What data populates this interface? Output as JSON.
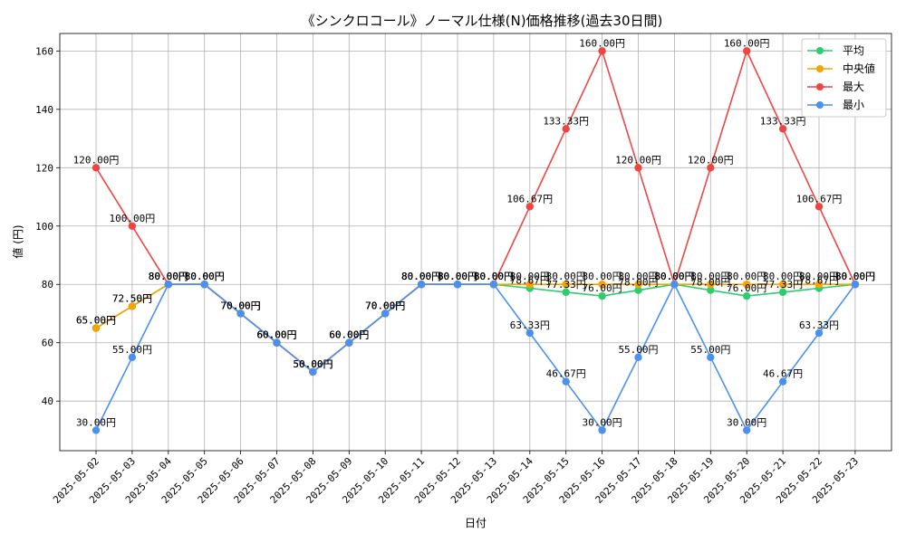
{
  "chart_data": {
    "type": "line",
    "title": "《シンクロコール》ノーマル仕様(N)価格推移(過去30日間)",
    "xlabel": "日付",
    "ylabel": "値 (円)",
    "ylim": [
      23,
      166
    ],
    "yticks": [
      40,
      60,
      80,
      100,
      120,
      140,
      160
    ],
    "grid": true,
    "legend_position": "top-right",
    "label_suffix": "円",
    "categories": [
      "2025-05-02",
      "2025-05-03",
      "2025-05-04",
      "2025-05-05",
      "2025-05-06",
      "2025-05-07",
      "2025-05-08",
      "2025-05-09",
      "2025-05-10",
      "2025-05-11",
      "2025-05-12",
      "2025-05-13",
      "2025-05-14",
      "2025-05-15",
      "2025-05-16",
      "2025-05-17",
      "2025-05-18",
      "2025-05-19",
      "2025-05-20",
      "2025-05-21",
      "2025-05-22",
      "2025-05-23"
    ],
    "series": [
      {
        "name": "平均",
        "color": "#2ecc71",
        "values": [
          65.0,
          72.5,
          80.0,
          80.0,
          70.0,
          60.0,
          50.0,
          60.0,
          70.0,
          80.0,
          80.0,
          80.0,
          78.67,
          77.33,
          76.0,
          78.0,
          80.0,
          78.0,
          76.0,
          77.33,
          78.67,
          80.0
        ]
      },
      {
        "name": "中央値",
        "color": "#f5a300",
        "values": [
          65.0,
          72.5,
          80.0,
          80.0,
          70.0,
          60.0,
          50.0,
          60.0,
          70.0,
          80.0,
          80.0,
          80.0,
          80.0,
          80.0,
          80.0,
          80.0,
          80.0,
          80.0,
          80.0,
          80.0,
          80.0,
          80.0
        ]
      },
      {
        "name": "最大",
        "color": "#ef4444",
        "values": [
          120.0,
          100.0,
          80.0,
          80.0,
          70.0,
          60.0,
          50.0,
          60.0,
          70.0,
          80.0,
          80.0,
          80.0,
          106.67,
          133.33,
          160.0,
          120.0,
          80.0,
          120.0,
          160.0,
          133.33,
          106.67,
          80.0
        ]
      },
      {
        "name": "最小",
        "color": "#4a90f0",
        "values": [
          30.0,
          55.0,
          80.0,
          80.0,
          70.0,
          60.0,
          50.0,
          60.0,
          70.0,
          80.0,
          80.0,
          80.0,
          63.33,
          46.67,
          30.0,
          55.0,
          80.0,
          55.0,
          30.0,
          46.67,
          63.33,
          80.0
        ]
      }
    ]
  }
}
